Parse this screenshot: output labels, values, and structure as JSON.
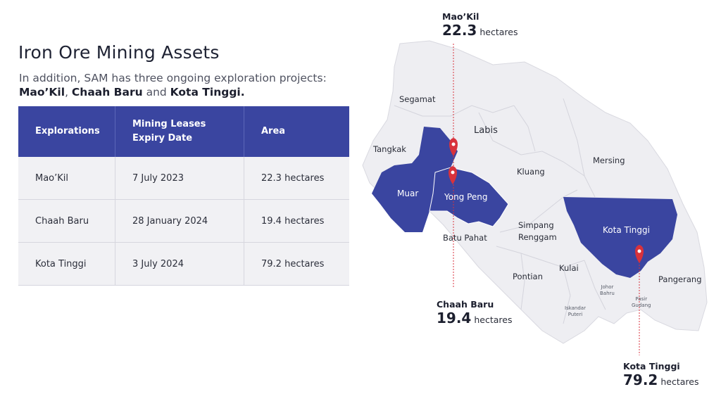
{
  "title": "Iron Ore Mining Assets",
  "subtitle": {
    "intro": "In addition, SAM has three  ongoing exploration projects:",
    "project1": "Mao’Kil",
    "sep1": ", ",
    "project2": "Chaah Baru",
    "sep2": " and ",
    "project3": "Kota Tinggi."
  },
  "table": {
    "headers": [
      "Explorations",
      "Mining Leases Expiry Date",
      "Area"
    ],
    "rows": [
      [
        "Mao’Kil",
        "7 July 2023",
        "22.3 hectares"
      ],
      [
        "Chaah Baru",
        "28 January 2024",
        "19.4 hectares"
      ],
      [
        "Kota Tinggi",
        "3 July 2024",
        "79.2 hectares"
      ]
    ]
  },
  "map": {
    "regions": {
      "segamat": "Segamat",
      "labis": "Labis",
      "tangkak": "Tangkak",
      "kluang": "Kluang",
      "mersing": "Mersing",
      "muar": "Muar",
      "yong_peng": "Yong Peng",
      "batu_pahat": "Batu Pahat",
      "simpang": "Simpang",
      "renggam": "Renggam",
      "kota_tinggi": "Kota Tinggi",
      "pontian": "Pontian",
      "kulai": "Kulai",
      "johor": "Johor",
      "bahru": "Bahru",
      "pasir": "Pasir",
      "gudang": "Gudang",
      "iskandar": "Iskandar",
      "puteri": "Puteri",
      "pangerang": "Pangerang"
    },
    "callouts": {
      "maokil": {
        "name": "Mao’Kil",
        "value": "22.3",
        "unit": "hectares"
      },
      "chaah": {
        "name": "Chaah Baru",
        "value": "19.4",
        "unit": "hectares"
      },
      "kota": {
        "name": "Kota Tinggi",
        "value": "79.2",
        "unit": "hectares"
      }
    },
    "colors": {
      "highlight": "#3a45a0",
      "land": "#eeeef2",
      "pin": "#d8323c"
    }
  }
}
